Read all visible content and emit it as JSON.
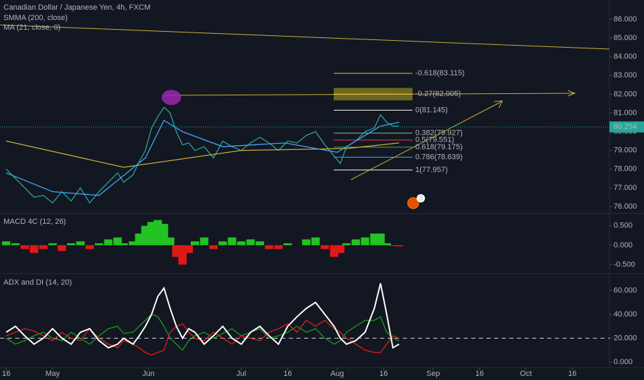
{
  "chart_data": [
    {
      "type": "line",
      "title": "Canadian Dollar / Japanese Yen, 4h, FXCM",
      "x": [
        0,
        3,
        6,
        9,
        12,
        15,
        18,
        21,
        24,
        27,
        30,
        33,
        36,
        38,
        41,
        43,
        45,
        47,
        49,
        51,
        53,
        55,
        57,
        59,
        61,
        64,
        67,
        70,
        73,
        76,
        79,
        82,
        85,
        88,
        91,
        94,
        97,
        100,
        103,
        106,
        108,
        110,
        113,
        116,
        119,
        121,
        123,
        125,
        127
      ],
      "xlim": [
        -2,
        195
      ],
      "ylim": [
        75.67,
        87.03
      ],
      "yticks": [
        {
          "value": 76,
          "label": "76.000"
        },
        {
          "value": 77,
          "label": "77.000"
        },
        {
          "value": 78,
          "label": "78.000"
        },
        {
          "value": 79,
          "label": "79.000"
        },
        {
          "value": 80,
          "label": "80.000"
        },
        {
          "value": 81,
          "label": "81.000"
        },
        {
          "value": 82,
          "label": "82.000"
        },
        {
          "value": 83,
          "label": "83.000"
        },
        {
          "value": 84,
          "label": "84.000"
        },
        {
          "value": 85,
          "label": "85.000"
        },
        {
          "value": 86,
          "label": "86.000"
        }
      ],
      "series": [
        {
          "color": "#26a69a",
          "values": [
            78.0,
            77.5,
            77.0,
            76.5,
            76.6,
            76.2,
            76.8,
            76.3,
            77.0,
            76.2,
            76.8,
            77.3,
            77.8,
            77.3,
            77.7,
            78.4,
            79.0,
            80.2,
            80.8,
            81.3,
            81.0,
            80.0,
            79.3,
            79.4,
            79.0,
            79.2,
            78.6,
            79.5,
            79.2,
            79.0,
            79.4,
            79.7,
            79.4,
            79.0,
            79.5,
            79.4,
            79.8,
            80.0,
            79.3,
            78.7,
            78.3,
            79.2,
            79.5,
            80.0,
            80.2,
            80.9,
            80.5,
            80.3,
            80.3
          ]
        },
        {
          "name": "SMMA (200, close)",
          "color": "#c9b037",
          "x": [
            0,
            38,
            76,
            110,
            127
          ],
          "values": [
            79.5,
            78.1,
            79.0,
            79.1,
            79.4
          ]
        },
        {
          "name": "MA (21, close, 0)",
          "color": "#42a5f5",
          "x": [
            0,
            15,
            30,
            45,
            51,
            57,
            70,
            90,
            107,
            121,
            127
          ],
          "values": [
            77.8,
            76.8,
            76.6,
            78.6,
            80.6,
            80.0,
            79.2,
            79.4,
            78.9,
            80.3,
            80.5
          ]
        }
      ],
      "annotations": [
        {
          "text": "-0.618(83.115)",
          "value": 83.115,
          "color": "#ffb74d"
        },
        {
          "text": "-0.27(82.005)",
          "value": 82.005,
          "color": "#ffd54f"
        },
        {
          "text": "0(81.145)",
          "value": 81.145,
          "color": "#ffffff"
        },
        {
          "text": "0.382(79.927)",
          "value": 79.927,
          "color": "#81c784"
        },
        {
          "text": "0.5(79.551)",
          "value": 79.551,
          "color": "#f23645"
        },
        {
          "text": "0.618(79.175)",
          "value": 79.175,
          "color": "#4caf50"
        },
        {
          "text": "0.786(78.639)",
          "value": 78.639,
          "color": "#42a5f5"
        },
        {
          "text": "1(77.957)",
          "value": 77.957,
          "color": "#ffffff"
        }
      ],
      "last_price": 80.254,
      "events_badge": "3"
    },
    {
      "type": "bar",
      "title": "MACD 4C (12, 26)",
      "x": [
        0,
        3,
        6,
        9,
        12,
        15,
        18,
        21,
        24,
        27,
        30,
        33,
        36,
        38,
        41,
        43,
        45,
        47,
        49,
        51,
        53,
        55,
        57,
        59,
        61,
        64,
        67,
        70,
        73,
        76,
        79,
        82,
        85,
        88,
        91,
        94,
        97,
        100,
        103,
        106,
        108,
        110,
        113,
        116,
        119,
        121,
        123,
        125,
        127
      ],
      "xlim": [
        -2,
        195
      ],
      "ylim": [
        -0.714,
        0.8
      ],
      "yticks": [
        {
          "value": -0.5,
          "label": "-0.500"
        },
        {
          "value": 0,
          "label": "0.000"
        },
        {
          "value": 0.5,
          "label": "0.500"
        }
      ],
      "colors": {
        "positive": "#22c322",
        "negative": "#e01818"
      },
      "values": [
        0.1,
        0.05,
        -0.1,
        -0.2,
        -0.1,
        0.05,
        -0.15,
        0.05,
        0.1,
        -0.1,
        0.05,
        0.15,
        0.2,
        0.05,
        0.1,
        0.3,
        0.5,
        0.6,
        0.65,
        0.55,
        0.2,
        -0.3,
        -0.5,
        -0.2,
        0.1,
        0.2,
        -0.1,
        0.1,
        0.2,
        0.1,
        0.15,
        0.1,
        -0.1,
        -0.1,
        0.05,
        0.0,
        0.15,
        0.2,
        -0.1,
        -0.3,
        -0.2,
        0.05,
        0.15,
        0.2,
        0.3,
        0.3,
        0.05,
        -0.02,
        -0.03
      ]
    },
    {
      "type": "line",
      "title": "ADX and DI (14, 20)",
      "x": [
        0,
        3,
        6,
        9,
        12,
        15,
        18,
        21,
        24,
        27,
        30,
        33,
        36,
        38,
        41,
        43,
        45,
        47,
        49,
        51,
        53,
        55,
        57,
        59,
        61,
        64,
        67,
        70,
        73,
        76,
        79,
        82,
        85,
        88,
        91,
        94,
        97,
        100,
        103,
        106,
        108,
        110,
        113,
        116,
        119,
        121,
        123,
        125,
        127
      ],
      "xlim": [
        -2,
        195
      ],
      "ylim": [
        -4.6,
        73
      ],
      "yticks": [
        {
          "value": 0,
          "label": "0.000"
        },
        {
          "value": 20,
          "label": "20.000"
        },
        {
          "value": 40,
          "label": "40.000"
        },
        {
          "value": 60,
          "label": "60.000"
        }
      ],
      "level": 20,
      "xticks": [
        {
          "value": 0,
          "label": "16"
        },
        {
          "value": 15,
          "label": "May"
        },
        {
          "value": 46,
          "label": "Jun"
        },
        {
          "value": 76,
          "label": "Jul"
        },
        {
          "value": 91,
          "label": "16"
        },
        {
          "value": 107,
          "label": "Aug"
        },
        {
          "value": 122,
          "label": "16"
        },
        {
          "value": 138,
          "label": "Sep"
        },
        {
          "value": 153,
          "label": "16"
        },
        {
          "value": 168,
          "label": "Oct"
        },
        {
          "value": 183,
          "label": "16"
        }
      ],
      "series": [
        {
          "color": "#1b9e1b",
          "values": [
            20,
            15,
            18,
            22,
            25,
            20,
            18,
            25,
            20,
            15,
            22,
            28,
            30,
            24,
            25,
            30,
            35,
            40,
            38,
            30,
            20,
            15,
            10,
            18,
            22,
            25,
            20,
            24,
            28,
            22,
            25,
            28,
            20,
            22,
            25,
            30,
            25,
            28,
            20,
            15,
            18,
            25,
            30,
            35,
            35,
            38,
            25,
            20,
            18
          ]
        },
        {
          "color": "#e0201c",
          "values": [
            22,
            25,
            28,
            26,
            22,
            18,
            25,
            20,
            18,
            28,
            20,
            15,
            12,
            18,
            15,
            12,
            8,
            6,
            8,
            10,
            25,
            30,
            32,
            25,
            20,
            18,
            25,
            20,
            15,
            22,
            20,
            18,
            25,
            28,
            32,
            25,
            35,
            30,
            35,
            28,
            25,
            20,
            15,
            10,
            8,
            8,
            15,
            22,
            20
          ]
        },
        {
          "color": "#ffffff",
          "values": [
            25,
            30,
            22,
            15,
            20,
            28,
            20,
            15,
            25,
            28,
            18,
            12,
            15,
            20,
            15,
            22,
            30,
            40,
            55,
            62,
            45,
            30,
            20,
            28,
            25,
            15,
            22,
            30,
            20,
            15,
            25,
            30,
            22,
            15,
            30,
            38,
            45,
            50,
            40,
            30,
            20,
            15,
            18,
            25,
            45,
            66,
            40,
            12,
            15
          ]
        }
      ]
    }
  ]
}
